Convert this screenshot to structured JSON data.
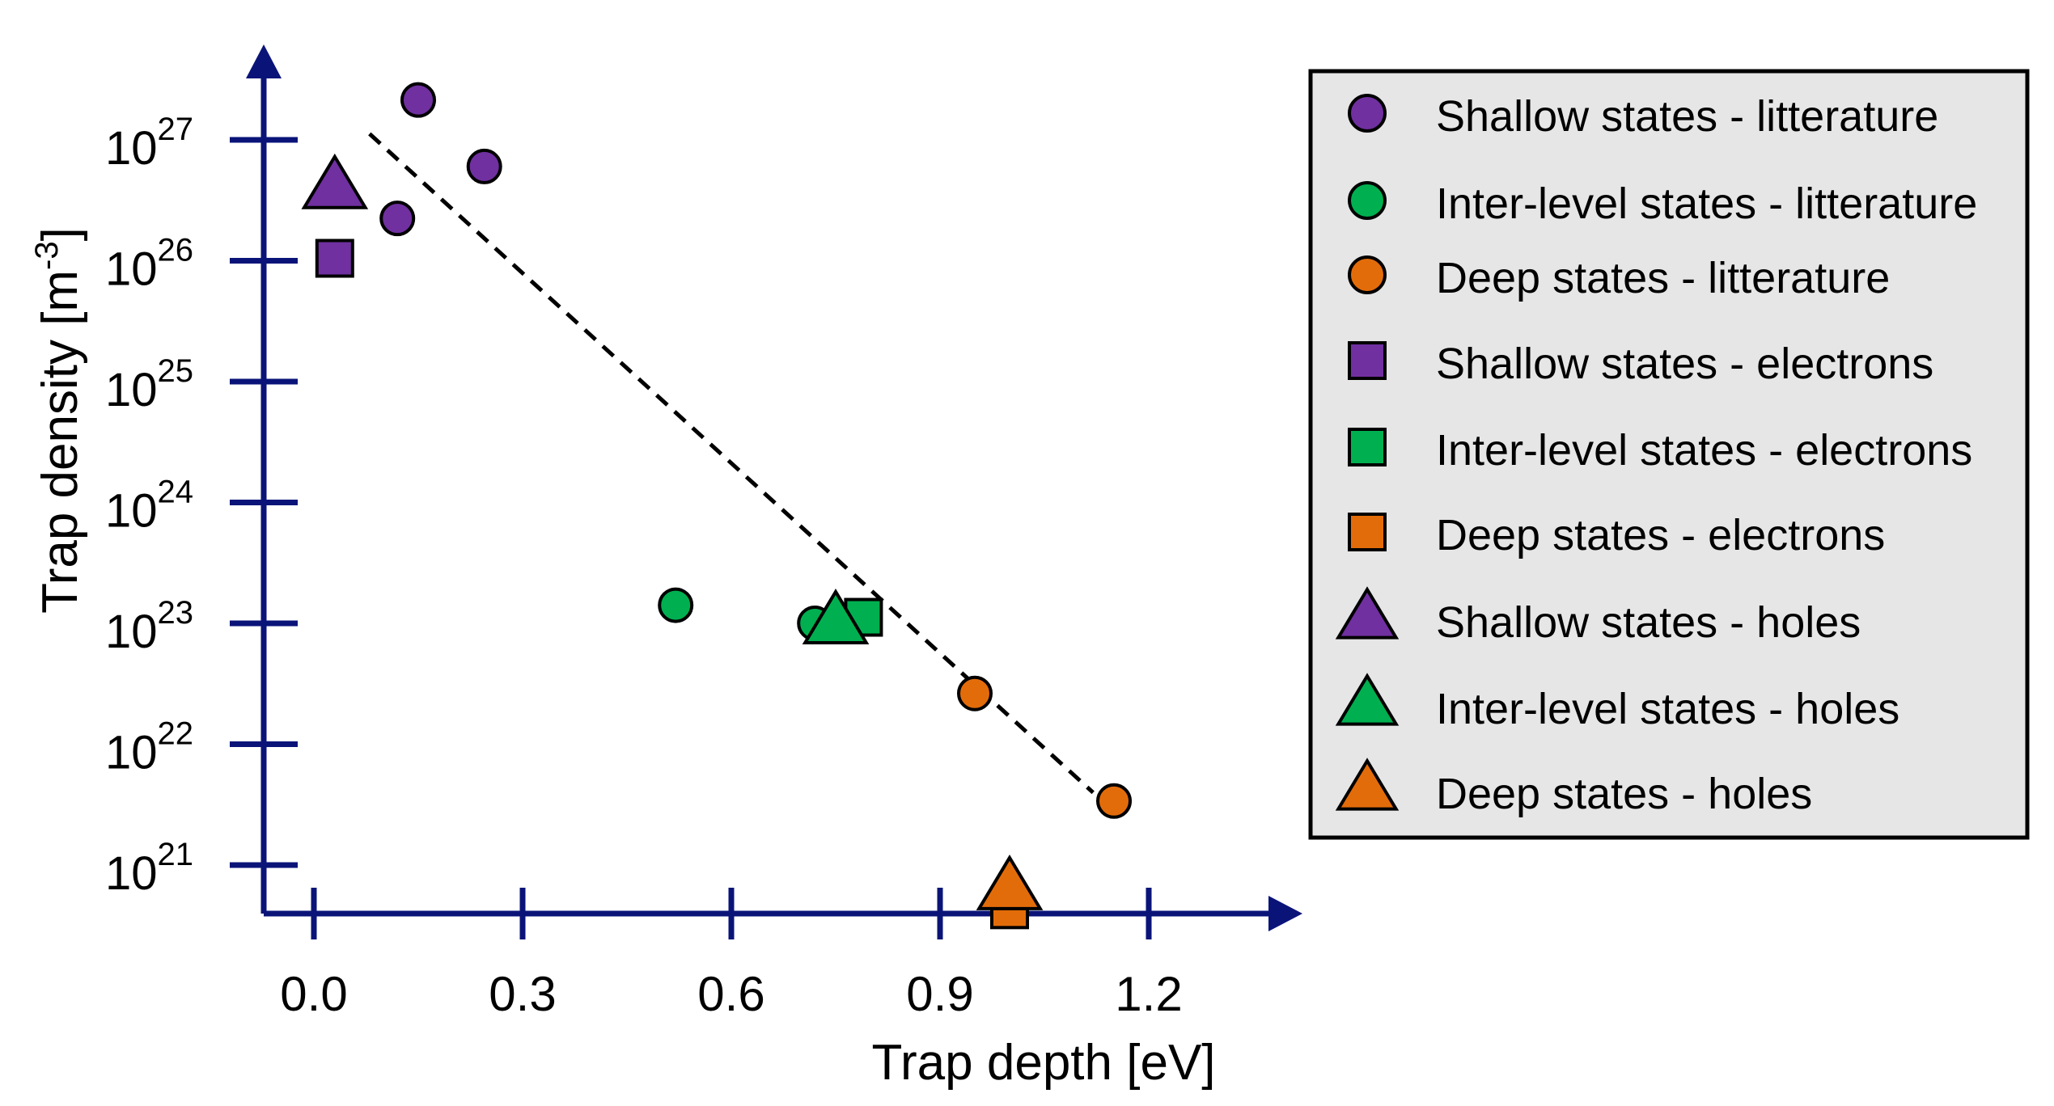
{
  "chart_data": {
    "type": "scatter",
    "title": "",
    "xlabel": "Trap depth [eV]",
    "ylabel": "Trap density [m",
    "ylabel_superscript": "-3",
    "ylabel_suffix": "]",
    "x_ticks": [
      0.0,
      0.3,
      0.6,
      0.9,
      1.2
    ],
    "x_tick_labels": [
      "0.0",
      "0.3",
      "0.6",
      "0.9",
      "1.2"
    ],
    "xlim": [
      -0.07,
      1.42
    ],
    "y_scale": "log",
    "y_ticks_log10": [
      21,
      22,
      23,
      24,
      25,
      26,
      27
    ],
    "y_tick_base": "10",
    "y_tick_exponents": [
      "21",
      "22",
      "23",
      "24",
      "25",
      "26",
      "27"
    ],
    "ylim_log10": [
      20.6,
      28.0
    ],
    "legend_position": "right",
    "colors": {
      "axis": "#0a1478",
      "purple": "#7030a0",
      "green": "#00b050",
      "orange": "#e36c0a",
      "legend_bg": "#e6e6e6"
    },
    "series": [
      {
        "name": "Shallow states - litterature",
        "marker": "circle",
        "color": "#7030a0",
        "points": [
          [
            0.15,
            27.33
          ],
          [
            0.12,
            26.35
          ],
          [
            0.245,
            26.78
          ]
        ]
      },
      {
        "name": "Inter-level states - litterature",
        "marker": "circle",
        "color": "#00b050",
        "points": [
          [
            0.52,
            23.15
          ],
          [
            0.72,
            23.0
          ]
        ]
      },
      {
        "name": "Deep states - litterature",
        "marker": "circle",
        "color": "#e36c0a",
        "points": [
          [
            0.95,
            22.42
          ],
          [
            1.15,
            21.53
          ]
        ]
      },
      {
        "name": "Shallow states - electrons",
        "marker": "square",
        "color": "#7030a0",
        "points": [
          [
            0.03,
            26.02
          ]
        ]
      },
      {
        "name": "Inter-level states - electrons",
        "marker": "square",
        "color": "#00b050",
        "points": [
          [
            0.79,
            23.05
          ]
        ]
      },
      {
        "name": "Deep states - electrons",
        "marker": "square",
        "color": "#e36c0a",
        "points": [
          [
            1.0,
            20.63
          ]
        ]
      },
      {
        "name": "Shallow states - holes",
        "marker": "triangle",
        "color": "#7030a0",
        "points": [
          [
            0.03,
            26.6
          ]
        ]
      },
      {
        "name": "Inter-level states - holes",
        "marker": "triangle",
        "color": "#00b050",
        "points": [
          [
            0.75,
            23.0
          ]
        ]
      },
      {
        "name": "Deep states - holes",
        "marker": "triangle",
        "color": "#e36c0a",
        "points": [
          [
            1.0,
            20.8
          ]
        ]
      }
    ],
    "fit_line": {
      "style": "dashed",
      "points": [
        [
          0.08,
          27.05
        ],
        [
          1.12,
          21.6
        ]
      ]
    }
  }
}
